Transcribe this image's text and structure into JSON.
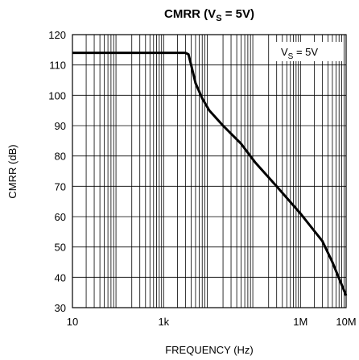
{
  "chart_data": {
    "type": "line",
    "title": [
      "CMRR (V",
      "S",
      " = 5V)"
    ],
    "annotation": [
      "V",
      "S",
      " = 5V"
    ],
    "x_label": "FREQUENCY (Hz)",
    "y_label": "CMRR (dB)",
    "x": [
      10,
      100,
      1000,
      3000,
      3500,
      4000,
      5000,
      7000,
      10000,
      20000,
      50000,
      100000,
      300000,
      1000000,
      3000000,
      5000000,
      10000000
    ],
    "series": [
      {
        "color": "#000000",
        "values": [
          114,
          114,
          114,
          114,
          113.5,
          110,
          104,
          99,
          95,
          90,
          84,
          78,
          70,
          61,
          52,
          45,
          34
        ]
      }
    ],
    "xlim": [
      10,
      10000000
    ],
    "ylim": [
      30,
      120
    ],
    "xticks": [
      10,
      {
        "value": 1000,
        "label": "1k"
      },
      {
        "value": 1000000,
        "label": "1M"
      },
      {
        "value": 10000000,
        "label": "10M"
      }
    ],
    "yticks": [
      30,
      40,
      50,
      60,
      70,
      80,
      90,
      100,
      110,
      120
    ],
    "x_log": true,
    "grid": true
  }
}
